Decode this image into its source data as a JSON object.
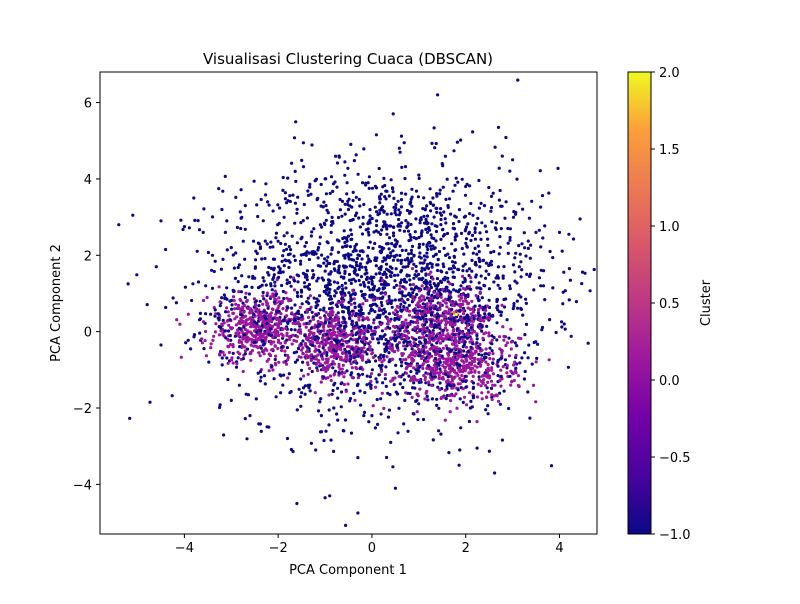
{
  "chart_data": {
    "type": "scatter",
    "title": "Visualisasi Clustering Cuaca (DBSCAN)",
    "xlabel": "PCA Component 1",
    "ylabel": "PCA Component 2",
    "xlim": [
      -5.8,
      4.8
    ],
    "ylim": [
      -5.3,
      6.8
    ],
    "xticks": [
      -4,
      -2,
      0,
      2,
      4
    ],
    "yticks": [
      -4,
      -2,
      0,
      2,
      4,
      6
    ],
    "grid": false,
    "colormap": "plasma",
    "colorbar": {
      "label": "Cluster",
      "range": [
        -1.0,
        2.0
      ],
      "ticks": [
        -1.0,
        -0.5,
        0.0,
        0.5,
        1.0,
        1.5,
        2.0
      ],
      "tick_labels": [
        "−1.0",
        "−0.5",
        "0.0",
        "0.5",
        "1.0",
        "1.5",
        "2.0"
      ]
    },
    "series": [
      {
        "cluster": -1,
        "color": "#0d0887",
        "points": [
          [
            -5.4,
            2.8
          ],
          [
            -5.1,
            3.05
          ],
          [
            -5.2,
            1.25
          ],
          [
            -4.6,
            1.7
          ],
          [
            -4.5,
            2.9
          ],
          [
            -4.4,
            2.15
          ],
          [
            -4.5,
            -0.35
          ],
          [
            -4.0,
            2.75
          ],
          [
            -3.8,
            3.5
          ],
          [
            -3.7,
            1.3
          ],
          [
            -3.6,
            2.6
          ],
          [
            -3.4,
            2.0
          ],
          [
            -3.2,
            3.2
          ],
          [
            -3.0,
            2.2
          ],
          [
            -3.0,
            -1.8
          ],
          [
            -2.8,
            2.7
          ],
          [
            -2.7,
            3.3
          ],
          [
            -2.6,
            -2.2
          ],
          [
            -2.5,
            1.4
          ],
          [
            -2.4,
            2.3
          ],
          [
            -2.2,
            -2.5
          ],
          [
            -2.1,
            1.9
          ],
          [
            -1.9,
            3.7
          ],
          [
            -1.8,
            -2.8
          ],
          [
            -1.7,
            2.5
          ],
          [
            -1.6,
            3.1
          ],
          [
            -1.5,
            -1.6
          ],
          [
            -1.4,
            2.0
          ],
          [
            -1.3,
            3.6
          ],
          [
            -1.2,
            -3.1
          ],
          [
            -1.1,
            2.8
          ],
          [
            -1.0,
            4.0
          ],
          [
            -0.9,
            -4.3
          ],
          [
            -0.8,
            1.3
          ],
          [
            -0.7,
            4.6
          ],
          [
            -0.6,
            -2.6
          ],
          [
            -0.5,
            3.2
          ],
          [
            -0.4,
            2.1
          ],
          [
            -0.3,
            -3.3
          ],
          [
            -0.2,
            3.9
          ],
          [
            -0.1,
            1.8
          ],
          [
            0.0,
            -2.2
          ],
          [
            0.1,
            2.9
          ],
          [
            0.2,
            3.6
          ],
          [
            0.3,
            1.5
          ],
          [
            0.4,
            -2.9
          ],
          [
            0.5,
            2.4
          ],
          [
            0.6,
            4.7
          ],
          [
            0.7,
            -1.8
          ],
          [
            0.8,
            3.1
          ],
          [
            0.9,
            2.0
          ],
          [
            1.0,
            4.1
          ],
          [
            1.1,
            -2.3
          ],
          [
            1.2,
            2.7
          ],
          [
            1.3,
            3.5
          ],
          [
            1.4,
            1.6
          ],
          [
            1.5,
            4.4
          ],
          [
            1.6,
            -1.5
          ],
          [
            1.7,
            2.3
          ],
          [
            1.8,
            3.0
          ],
          [
            1.9,
            1.2
          ],
          [
            2.0,
            3.8
          ],
          [
            2.1,
            -2.0
          ],
          [
            2.2,
            2.6
          ],
          [
            2.3,
            1.7
          ],
          [
            2.4,
            3.3
          ],
          [
            2.5,
            -1.2
          ],
          [
            2.6,
            2.1
          ],
          [
            2.7,
            5.35
          ],
          [
            2.8,
            1.4
          ],
          [
            2.9,
            2.7
          ],
          [
            3.0,
            4.5
          ],
          [
            3.1,
            0.8
          ],
          [
            3.2,
            2.3
          ],
          [
            3.3,
            1.5
          ],
          [
            3.5,
            2.6
          ],
          [
            3.6,
            1.2
          ],
          [
            3.8,
            2.1
          ],
          [
            4.0,
            2.6
          ],
          [
            4.2,
            2.55
          ],
          [
            4.1,
            0.2
          ],
          [
            1.4,
            6.2
          ],
          [
            -1.6,
            -4.5
          ],
          [
            -1.0,
            -4.35
          ],
          [
            -0.3,
            -4.75
          ],
          [
            0.5,
            -4.1
          ]
        ]
      }
    ],
    "clusters": [
      {
        "cluster": 0,
        "color": "#9c179e",
        "center": [
          -2.4,
          0.1
        ],
        "spread": [
          0.55,
          0.45
        ],
        "count": 450
      },
      {
        "cluster": 0,
        "color": "#9c179e",
        "center": [
          -0.8,
          -0.4
        ],
        "spread": [
          0.5,
          0.45
        ],
        "count": 350
      },
      {
        "cluster": 0,
        "color": "#9c179e",
        "center": [
          1.4,
          0.3
        ],
        "spread": [
          0.6,
          0.45
        ],
        "count": 350
      },
      {
        "cluster": 0,
        "color": "#9c179e",
        "center": [
          1.8,
          -0.9
        ],
        "spread": [
          0.65,
          0.45
        ],
        "count": 450
      }
    ],
    "noise_background": {
      "cluster": -1,
      "color": "#0d0887",
      "center": [
        0.3,
        1.1
      ],
      "spread": [
        1.7,
        1.6
      ],
      "count": 2200
    },
    "outlier_points": [
      {
        "cluster": 1,
        "color": "#ed7953",
        "point": [
          1.75,
          0.5
        ]
      },
      {
        "cluster": 2,
        "color": "#f0f921",
        "point": [
          1.8,
          0.45
        ]
      }
    ]
  }
}
